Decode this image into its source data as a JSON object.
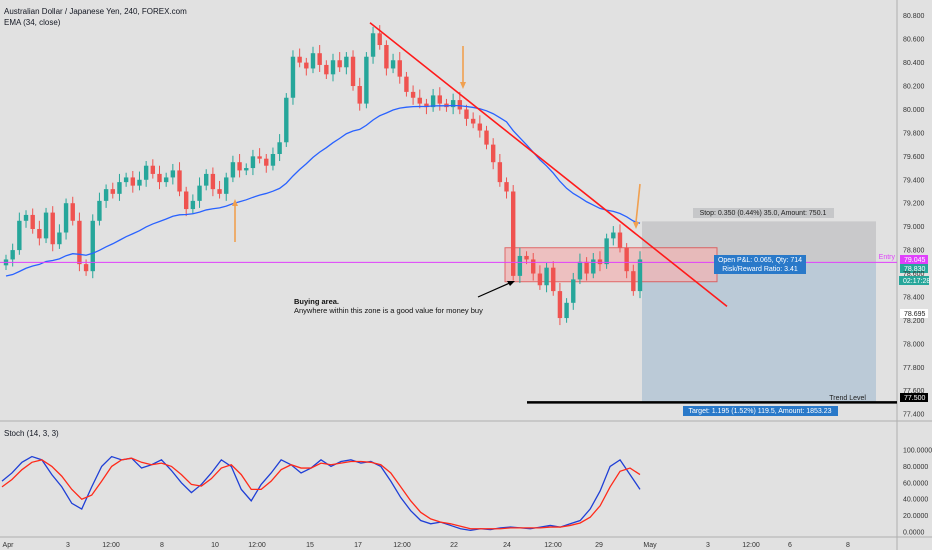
{
  "header": {
    "symbol_line": "Australian Dollar / Japanese Yen, 240, FOREX.com",
    "ema_label": "EMA (34, close)",
    "stoch_label": "Stoch (14, 3, 3)"
  },
  "colors": {
    "background": "#e1e1e1",
    "up_candle": "#26a69a",
    "down_candle": "#ef5350",
    "ema": "#2962ff",
    "trendline": "#ff1a1a",
    "entry_line": "#e040fb",
    "stop_zone": "#c6c7c9",
    "target_zone": "#b7c8d6",
    "buy_zone": "#f2b5b5",
    "arrow": "#f0a050",
    "stoch_k": "#1f3fd6",
    "stoch_d": "#ff2a1a"
  },
  "annotations": {
    "buying_title": "Buying area.",
    "buying_sub": "Anywhere within this zone is a good value for money buy",
    "stop_box": "Stop: 0.350 (0.44%) 35.0, Amount: 750.1",
    "pnl_box_1": "Open P&L: 0.065, Qty: 714",
    "pnl_box_2": "Risk/Reward Ratio: 3.41",
    "target_box": "Target: 1.195 (1.52%) 119.5, Amount: 1853.23",
    "trend_level_label": "Trend Level",
    "entry_label": "Entry"
  },
  "price_tags": {
    "stop_price": "79.045",
    "current": "78.830",
    "countdown": "02:17:28",
    "entry_price": "78.695",
    "trend_level": "77.500"
  },
  "chart_data": [
    {
      "type": "candlestick",
      "title": "Australian Dollar / Japanese Yen, 240, FOREX.com",
      "ylim": [
        77.35,
        80.9
      ],
      "y_ticks": [
        "80.800",
        "80.600",
        "80.400",
        "80.200",
        "80.000",
        "79.800",
        "79.600",
        "79.400",
        "79.200",
        "79.000",
        "78.800",
        "78.600",
        "78.400",
        "78.200",
        "78.000",
        "77.800",
        "77.600",
        "77.400"
      ],
      "x_ticks": [
        "Apr",
        "3",
        "12:00",
        "8",
        "10",
        "12:00",
        "15",
        "17",
        "12:00",
        "22",
        "24",
        "12:00",
        "29",
        "May",
        "3",
        "12:00",
        "6",
        "8"
      ],
      "close_series": [
        78.72,
        78.8,
        79.05,
        79.1,
        78.98,
        78.9,
        79.12,
        78.85,
        78.95,
        79.2,
        79.05,
        78.68,
        78.62,
        79.05,
        79.22,
        79.32,
        79.28,
        79.38,
        79.42,
        79.35,
        79.4,
        79.52,
        79.45,
        79.38,
        79.42,
        79.48,
        79.3,
        79.15,
        79.22,
        79.35,
        79.45,
        79.32,
        79.28,
        79.42,
        79.55,
        79.48,
        79.5,
        79.6,
        79.58,
        79.52,
        79.62,
        79.72,
        80.1,
        80.45,
        80.4,
        80.35,
        80.48,
        80.38,
        80.3,
        80.42,
        80.36,
        80.45,
        80.2,
        80.05,
        80.45,
        80.65,
        80.55,
        80.35,
        80.42,
        80.28,
        80.15,
        80.1,
        80.05,
        80.02,
        80.12,
        80.05,
        80.02,
        80.08,
        80.0,
        79.92,
        79.88,
        79.82,
        79.7,
        79.55,
        79.38,
        79.3,
        78.58,
        78.75,
        78.72,
        78.6,
        78.5,
        78.65,
        78.45,
        78.22,
        78.35,
        78.55,
        78.7,
        78.6,
        78.72,
        78.68,
        78.9,
        78.95,
        78.82,
        78.62,
        78.45,
        78.72
      ],
      "ema": {
        "name": "EMA (34, close)",
        "period": 34,
        "values_visible": true
      },
      "trendline": {
        "from": {
          "x": "17",
          "y": 80.74
        },
        "to": {
          "x": "May",
          "y": 78.32
        }
      },
      "entry": 78.695,
      "stop": 79.045,
      "target": 77.5,
      "trend_level": 77.5,
      "buy_zone": [
        78.53,
        78.82
      ]
    },
    {
      "type": "line",
      "title": "Stoch (14, 3, 3)",
      "ylim": [
        0,
        100
      ],
      "y_ticks": [
        "100.0000",
        "80.0000",
        "60.0000",
        "40.0000",
        "20.0000",
        "0.0000"
      ],
      "series": [
        {
          "name": "%K",
          "values": [
            62,
            72,
            85,
            92,
            88,
            70,
            55,
            35,
            28,
            55,
            80,
            92,
            88,
            90,
            78,
            82,
            88,
            75,
            60,
            48,
            58,
            72,
            88,
            80,
            52,
            38,
            58,
            72,
            88,
            82,
            72,
            78,
            88,
            80,
            86,
            88,
            84,
            86,
            80,
            62,
            42,
            26,
            14,
            10,
            12,
            8,
            4,
            2,
            4,
            3,
            5,
            6,
            5,
            4,
            6,
            8,
            6,
            10,
            14,
            28,
            50,
            80,
            88,
            70,
            52
          ]
        },
        {
          "name": "%D",
          "values": [
            55,
            64,
            76,
            85,
            88,
            80,
            68,
            52,
            40,
            45,
            62,
            80,
            88,
            90,
            85,
            82,
            84,
            80,
            70,
            58,
            56,
            65,
            78,
            82,
            70,
            52,
            52,
            62,
            76,
            82,
            78,
            78,
            84,
            82,
            84,
            86,
            86,
            85,
            82,
            72,
            55,
            38,
            24,
            16,
            12,
            10,
            7,
            4,
            4,
            4,
            4,
            5,
            5,
            5,
            5,
            6,
            6,
            8,
            11,
            18,
            32,
            55,
            74,
            78,
            70
          ]
        }
      ]
    }
  ]
}
